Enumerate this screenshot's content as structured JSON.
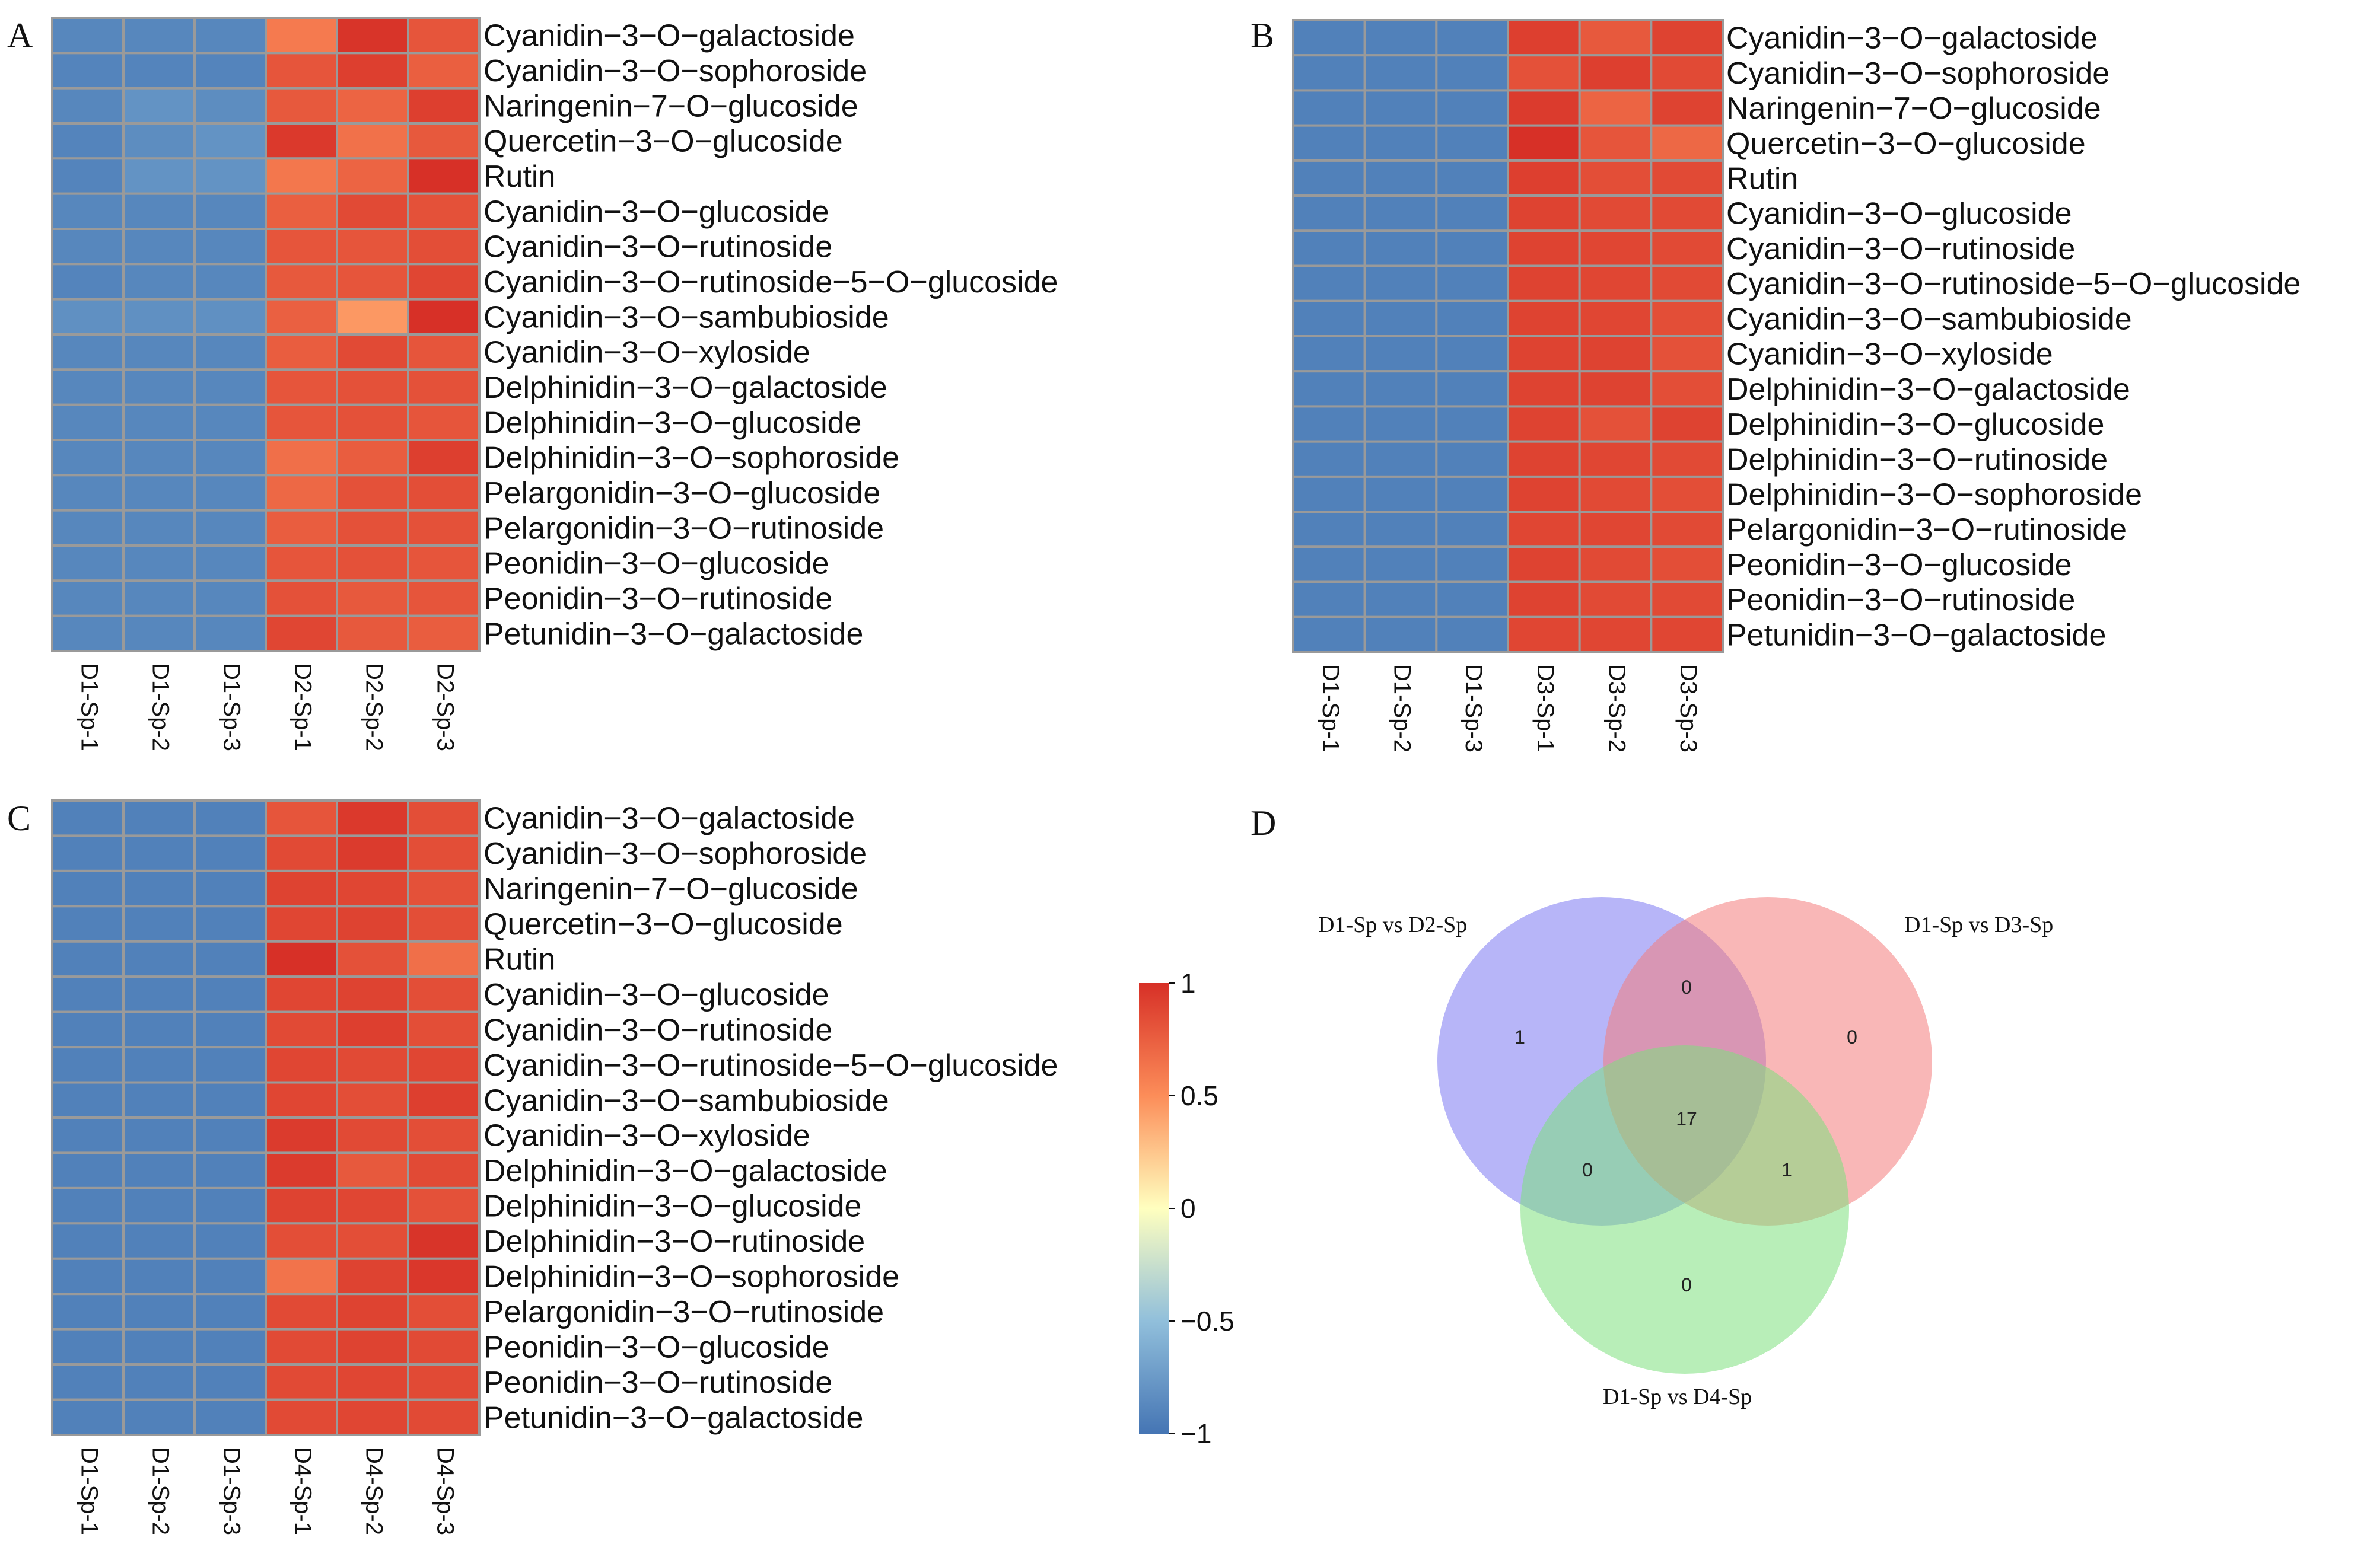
{
  "figure_letters": [
    "A",
    "B",
    "C",
    "D"
  ],
  "colors": {
    "scale_low": "#4575b4",
    "scale_mid": "#ffffbf",
    "scale_high": "#d73027",
    "grid": "#9a9a9a",
    "venn_a": "#7b78f2",
    "venn_b": "#f47c7c",
    "venn_c": "#7ee07e"
  },
  "chart_data": [
    {
      "type": "heatmap",
      "panel": "A",
      "columns": [
        "D1-Sp-1",
        "D1-Sp-2",
        "D1-Sp-3",
        "D2-Sp-1",
        "D2-Sp-2",
        "D2-Sp-3"
      ],
      "rows": [
        "Cyanidin−3−O−galactoside",
        "Cyanidin−3−O−sophoroside",
        "Naringenin−7−O−glucoside",
        "Quercetin−3−O−glucoside",
        "Rutin",
        "Cyanidin−3−O−glucoside",
        "Cyanidin−3−O−rutinoside",
        "Cyanidin−3−O−rutinoside−5−O−glucoside",
        "Cyanidin−3−O−sambubioside",
        "Cyanidin−3−O−xyloside",
        "Delphinidin−3−O−galactoside",
        "Delphinidin−3−O−glucoside",
        "Delphinidin−3−O−sophoroside",
        "Pelargonidin−3−O−glucoside",
        "Pelargonidin−3−O−rutinoside",
        "Peonidin−3−O−glucoside",
        "Peonidin−3−O−rutinoside",
        "Petunidin−3−O−galactoside"
      ],
      "values": [
        [
          -0.88,
          -0.88,
          -0.88,
          0.6,
          0.98,
          0.8
        ],
        [
          -0.9,
          -0.9,
          -0.9,
          0.8,
          0.92,
          0.75
        ],
        [
          -0.88,
          -0.8,
          -0.84,
          0.78,
          0.72,
          0.92
        ],
        [
          -0.9,
          -0.84,
          -0.8,
          0.95,
          0.65,
          0.78
        ],
        [
          -0.9,
          -0.8,
          -0.8,
          0.62,
          0.72,
          1.0
        ],
        [
          -0.88,
          -0.88,
          -0.88,
          0.75,
          0.86,
          0.82
        ],
        [
          -0.88,
          -0.88,
          -0.88,
          0.8,
          0.8,
          0.84
        ],
        [
          -0.9,
          -0.88,
          -0.88,
          0.78,
          0.8,
          0.88
        ],
        [
          -0.82,
          -0.82,
          -0.82,
          0.74,
          0.45,
          1.0
        ],
        [
          -0.88,
          -0.88,
          -0.88,
          0.76,
          0.86,
          0.8
        ],
        [
          -0.88,
          -0.88,
          -0.88,
          0.8,
          0.82,
          0.82
        ],
        [
          -0.88,
          -0.88,
          -0.88,
          0.8,
          0.82,
          0.8
        ],
        [
          -0.88,
          -0.88,
          -0.88,
          0.66,
          0.76,
          0.92
        ],
        [
          -0.88,
          -0.88,
          -0.88,
          0.7,
          0.82,
          0.84
        ],
        [
          -0.88,
          -0.88,
          -0.88,
          0.76,
          0.82,
          0.82
        ],
        [
          -0.88,
          -0.88,
          -0.88,
          0.8,
          0.82,
          0.8
        ],
        [
          -0.88,
          -0.88,
          -0.88,
          0.82,
          0.78,
          0.8
        ],
        [
          -0.88,
          -0.88,
          -0.88,
          0.88,
          0.78,
          0.76
        ]
      ]
    },
    {
      "type": "heatmap",
      "panel": "B",
      "columns": [
        "D1-Sp-1",
        "D1-Sp-2",
        "D1-Sp-3",
        "D3-Sp-1",
        "D3-Sp-2",
        "D3-Sp-3"
      ],
      "rows": [
        "Cyanidin−3−O−galactoside",
        "Cyanidin−3−O−sophoroside",
        "Naringenin−7−O−glucoside",
        "Quercetin−3−O−glucoside",
        "Rutin",
        "Cyanidin−3−O−glucoside",
        "Cyanidin−3−O−rutinoside",
        "Cyanidin−3−O−rutinoside−5−O−glucoside",
        "Cyanidin−3−O−sambubioside",
        "Cyanidin−3−O−xyloside",
        "Delphinidin−3−O−galactoside",
        "Delphinidin−3−O−glucoside",
        "Delphinidin−3−O−rutinoside",
        "Delphinidin−3−O−sophoroside",
        "Pelargonidin−3−O−rutinoside",
        "Peonidin−3−O−glucoside",
        "Peonidin−3−O−rutinoside",
        "Petunidin−3−O−galactoside"
      ],
      "values": [
        [
          -0.92,
          -0.92,
          -0.92,
          0.92,
          0.78,
          0.9
        ],
        [
          -0.92,
          -0.92,
          -0.92,
          0.82,
          0.92,
          0.86
        ],
        [
          -0.92,
          -0.92,
          -0.92,
          0.94,
          0.72,
          0.9
        ],
        [
          -0.92,
          -0.92,
          -0.92,
          1.0,
          0.8,
          0.7
        ],
        [
          -0.92,
          -0.92,
          -0.92,
          0.92,
          0.84,
          0.86
        ],
        [
          -0.92,
          -0.92,
          -0.92,
          0.9,
          0.86,
          0.86
        ],
        [
          -0.92,
          -0.92,
          -0.92,
          0.9,
          0.88,
          0.86
        ],
        [
          -0.92,
          -0.92,
          -0.92,
          0.9,
          0.88,
          0.86
        ],
        [
          -0.92,
          -0.92,
          -0.92,
          0.9,
          0.88,
          0.84
        ],
        [
          -0.92,
          -0.92,
          -0.92,
          0.9,
          0.9,
          0.82
        ],
        [
          -0.92,
          -0.92,
          -0.92,
          0.9,
          0.9,
          0.84
        ],
        [
          -0.92,
          -0.92,
          -0.92,
          0.9,
          0.82,
          0.9
        ],
        [
          -0.92,
          -0.92,
          -0.92,
          0.9,
          0.88,
          0.86
        ],
        [
          -0.92,
          -0.92,
          -0.92,
          0.9,
          0.86,
          0.84
        ],
        [
          -0.92,
          -0.92,
          -0.92,
          0.88,
          0.88,
          0.86
        ],
        [
          -0.92,
          -0.92,
          -0.92,
          0.9,
          0.86,
          0.84
        ],
        [
          -0.92,
          -0.92,
          -0.92,
          0.9,
          0.86,
          0.86
        ],
        [
          -0.92,
          -0.92,
          -0.92,
          0.88,
          0.88,
          0.88
        ]
      ]
    },
    {
      "type": "heatmap",
      "panel": "C",
      "columns": [
        "D1-Sp-1",
        "D1-Sp-2",
        "D1-Sp-3",
        "D4-Sp-1",
        "D4-Sp-2",
        "D4-Sp-3"
      ],
      "rows": [
        "Cyanidin−3−O−galactoside",
        "Cyanidin−3−O−sophoroside",
        "Naringenin−7−O−glucoside",
        "Quercetin−3−O−glucoside",
        "Rutin",
        "Cyanidin−3−O−glucoside",
        "Cyanidin−3−O−rutinoside",
        "Cyanidin−3−O−rutinoside−5−O−glucoside",
        "Cyanidin−3−O−sambubioside",
        "Cyanidin−3−O−xyloside",
        "Delphinidin−3−O−galactoside",
        "Delphinidin−3−O−glucoside",
        "Delphinidin−3−O−rutinoside",
        "Delphinidin−3−O−sophoroside",
        "Pelargonidin−3−O−rutinoside",
        "Peonidin−3−O−glucoside",
        "Peonidin−3−O−rutinoside",
        "Petunidin−3−O−galactoside"
      ],
      "values": [
        [
          -0.92,
          -0.92,
          -0.92,
          0.8,
          0.95,
          0.84
        ],
        [
          -0.92,
          -0.92,
          -0.92,
          0.86,
          0.94,
          0.84
        ],
        [
          -0.92,
          -0.92,
          -0.92,
          0.9,
          0.88,
          0.82
        ],
        [
          -0.92,
          -0.92,
          -0.92,
          0.88,
          0.9,
          0.84
        ],
        [
          -0.92,
          -0.92,
          -0.92,
          1.0,
          0.82,
          0.66
        ],
        [
          -0.92,
          -0.92,
          -0.92,
          0.88,
          0.9,
          0.84
        ],
        [
          -0.92,
          -0.92,
          -0.92,
          0.86,
          0.92,
          0.84
        ],
        [
          -0.92,
          -0.92,
          -0.92,
          0.88,
          0.86,
          0.88
        ],
        [
          -0.92,
          -0.92,
          -0.92,
          0.88,
          0.84,
          0.92
        ],
        [
          -0.92,
          -0.92,
          -0.92,
          0.94,
          0.86,
          0.84
        ],
        [
          -0.92,
          -0.92,
          -0.92,
          0.94,
          0.78,
          0.86
        ],
        [
          -0.92,
          -0.92,
          -0.92,
          0.9,
          0.88,
          0.82
        ],
        [
          -0.92,
          -0.92,
          -0.92,
          0.84,
          0.84,
          0.98
        ],
        [
          -0.92,
          -0.92,
          -0.92,
          0.64,
          0.9,
          0.96
        ],
        [
          -0.92,
          -0.92,
          -0.92,
          0.86,
          0.9,
          0.84
        ],
        [
          -0.92,
          -0.92,
          -0.92,
          0.86,
          0.9,
          0.86
        ],
        [
          -0.92,
          -0.92,
          -0.92,
          0.86,
          0.88,
          0.86
        ],
        [
          -0.92,
          -0.92,
          -0.92,
          0.86,
          0.88,
          0.86
        ]
      ]
    }
  ],
  "colorbar": {
    "range": [
      -1,
      1
    ],
    "ticks": [
      {
        "value": 1,
        "label": "1"
      },
      {
        "value": 0.5,
        "label": "0.5"
      },
      {
        "value": 0,
        "label": "0"
      },
      {
        "value": -0.5,
        "label": "−0.5"
      },
      {
        "value": -1,
        "label": "−1"
      }
    ]
  },
  "venn": {
    "sets": [
      {
        "name": "D1-Sp vs D2-Sp",
        "color": "#7b78f2"
      },
      {
        "name": "D1-Sp vs D3-Sp",
        "color": "#f47c7c"
      },
      {
        "name": "D1-Sp vs D4-Sp",
        "color": "#7ee07e"
      }
    ],
    "counts": {
      "only_d2": "1",
      "only_d3": "0",
      "only_d4": "0",
      "d2_d3": "0",
      "d2_d4": "0",
      "d3_d4": "1",
      "all": "17"
    }
  }
}
